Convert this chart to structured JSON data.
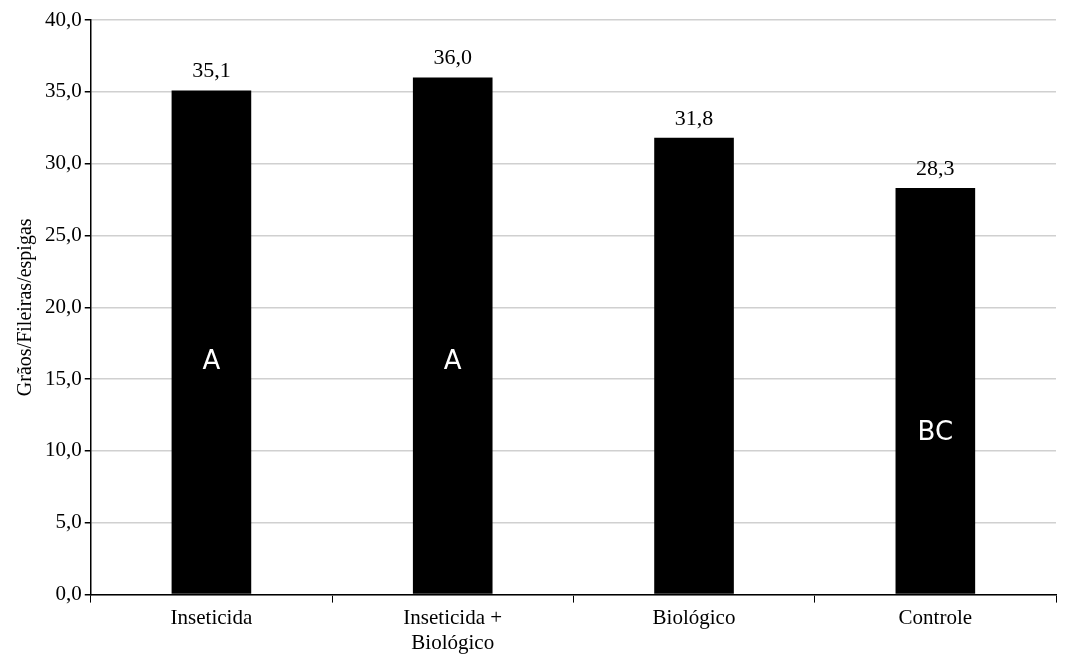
{
  "chart_data": {
    "type": "bar",
    "ylabel": "Grãos/Fileiras/espigas",
    "categories": [
      "Inseticida",
      "Inseticida + Biológico",
      "Biológico",
      "Controle"
    ],
    "values": [
      35.1,
      36.0,
      31.8,
      28.3
    ],
    "color": "#000000",
    "ylim": [
      0,
      40
    ],
    "yticks": [
      {
        "value": 0,
        "label": "0,0"
      },
      {
        "value": 5,
        "label": "5,0"
      },
      {
        "value": 10,
        "label": "10,0"
      },
      {
        "value": 15,
        "label": "15,0"
      },
      {
        "value": 20,
        "label": "20,0"
      },
      {
        "value": 25,
        "label": "25,0"
      },
      {
        "value": 30,
        "label": "30,0"
      },
      {
        "value": 35,
        "label": "35,0"
      },
      {
        "value": 40,
        "label": "40,0"
      }
    ],
    "grid": "y",
    "legend": false,
    "value_labels": [
      "35,1",
      "36,0",
      "31,8",
      "28,3"
    ],
    "annotations": [
      "A",
      "A",
      "BC"
    ]
  }
}
